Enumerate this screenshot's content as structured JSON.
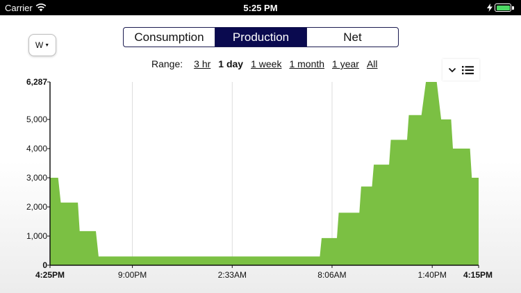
{
  "status_bar": {
    "carrier": "Carrier",
    "time": "5:25 PM"
  },
  "unit_button": {
    "label": "W"
  },
  "tabs": [
    {
      "label": "Consumption",
      "active": false
    },
    {
      "label": "Production",
      "active": true
    },
    {
      "label": "Net",
      "active": false
    }
  ],
  "range": {
    "label": "Range:",
    "options": [
      {
        "label": "3 hr",
        "active": false
      },
      {
        "label": "1 day",
        "active": true
      },
      {
        "label": "1 week",
        "active": false
      },
      {
        "label": "1 month",
        "active": false
      },
      {
        "label": "1 year",
        "active": false
      },
      {
        "label": "All",
        "active": false
      }
    ]
  },
  "chart_tools": {
    "collapse_icon": "chevron-down-icon",
    "list_icon": "list-icon"
  },
  "colors": {
    "accent": "#0a0a4f",
    "area": "#7bc043",
    "battery": "#4cd964"
  },
  "chart_data": {
    "type": "area",
    "title": "",
    "xlabel": "",
    "ylabel": "",
    "ylim": [
      0,
      6287
    ],
    "grid": true,
    "legend": "none",
    "y_ticks": [
      {
        "value": 0,
        "label": "0",
        "bold": true
      },
      {
        "value": 1000,
        "label": "1,000",
        "bold": false
      },
      {
        "value": 2000,
        "label": "2,000",
        "bold": false
      },
      {
        "value": 3000,
        "label": "3,000",
        "bold": false
      },
      {
        "value": 4000,
        "label": "4,000",
        "bold": false
      },
      {
        "value": 5000,
        "label": "5,000",
        "bold": false
      },
      {
        "value": 6287,
        "label": "6,287",
        "bold": true
      }
    ],
    "x_ticks": [
      {
        "hours": 0,
        "label": "4:25PM",
        "bold": true
      },
      {
        "hours": 4.58,
        "label": "9:00PM",
        "bold": false
      },
      {
        "hours": 10.13,
        "label": "2:33AM",
        "bold": false
      },
      {
        "hours": 15.68,
        "label": "8:06AM",
        "bold": false
      },
      {
        "hours": 21.25,
        "label": "1:40PM",
        "bold": false
      },
      {
        "hours": 23.83,
        "label": "4:15PM",
        "bold": true
      }
    ],
    "x_range_hours": [
      0,
      23.83
    ],
    "series": [
      {
        "points": [
          [
            0.0,
            3000
          ],
          [
            0.45,
            3000
          ],
          [
            0.6,
            2150
          ],
          [
            1.55,
            2150
          ],
          [
            1.65,
            1170
          ],
          [
            2.55,
            1170
          ],
          [
            2.7,
            300
          ],
          [
            15.0,
            300
          ],
          [
            15.1,
            930
          ],
          [
            15.95,
            930
          ],
          [
            16.05,
            1800
          ],
          [
            17.2,
            1800
          ],
          [
            17.3,
            2700
          ],
          [
            17.9,
            2700
          ],
          [
            18.0,
            3450
          ],
          [
            18.85,
            3450
          ],
          [
            18.95,
            4300
          ],
          [
            19.85,
            4300
          ],
          [
            19.95,
            5150
          ],
          [
            20.65,
            5150
          ],
          [
            20.9,
            6287
          ],
          [
            21.5,
            6287
          ],
          [
            21.75,
            5000
          ],
          [
            22.3,
            5000
          ],
          [
            22.4,
            4000
          ],
          [
            23.35,
            4000
          ],
          [
            23.45,
            3000
          ],
          [
            23.83,
            3000
          ]
        ]
      }
    ]
  }
}
